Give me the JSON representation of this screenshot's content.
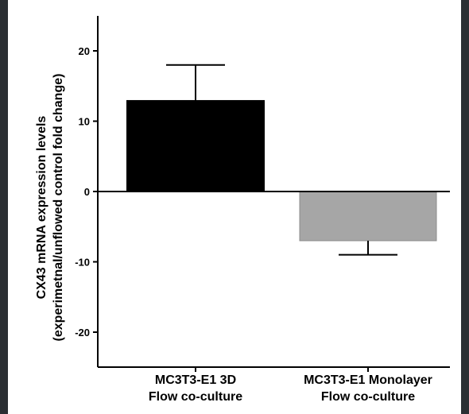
{
  "chart_data": {
    "type": "bar",
    "categories": [
      [
        "MC3T3-E1 3D",
        "Flow co-culture"
      ],
      [
        "MC3T3-E1 Monolayer",
        "Flow co-culture"
      ]
    ],
    "values": [
      13,
      -7
    ],
    "error": [
      5,
      2
    ],
    "colors": [
      "#000000",
      "#a6a6a6"
    ],
    "ylabel": [
      "CX43 mRNA expression levels",
      "(experimetnal/unflowed control fold change)"
    ],
    "xlabel": "",
    "title": "",
    "ylim": [
      -25,
      25
    ],
    "yticks": [
      20,
      10,
      0,
      -10,
      -20
    ],
    "grid": false
  }
}
